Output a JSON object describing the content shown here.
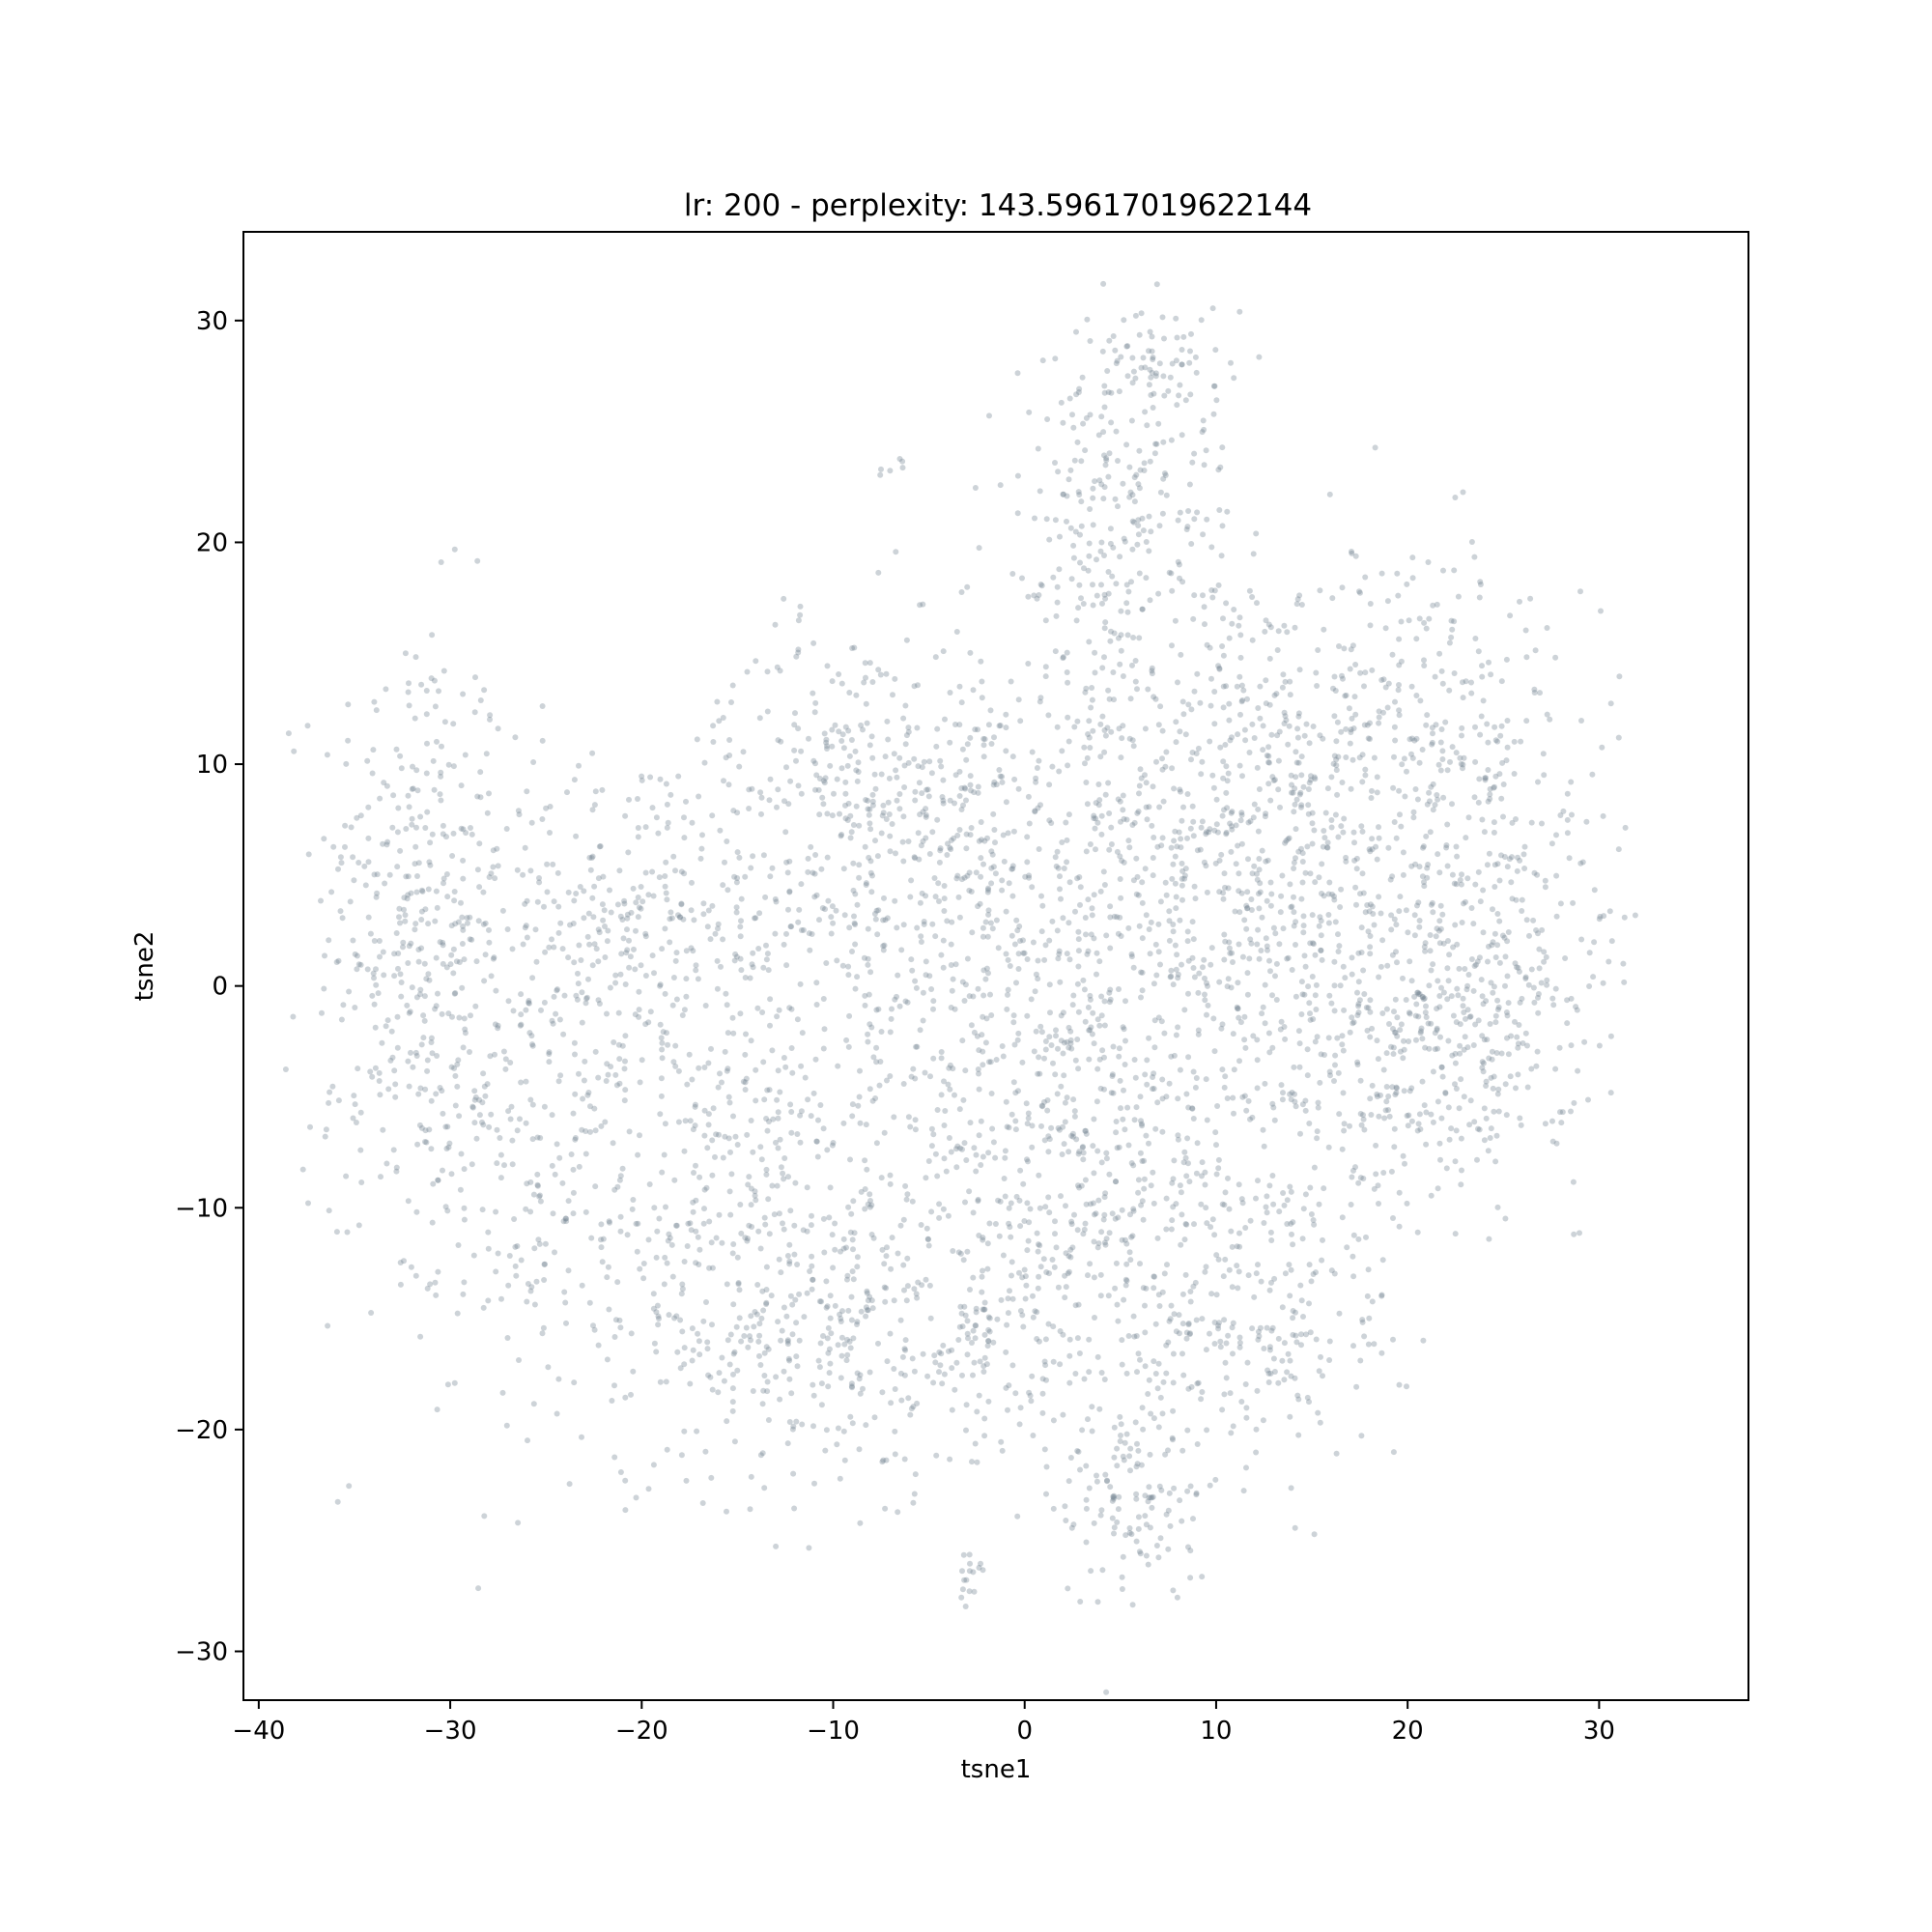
{
  "chart_data": {
    "type": "scatter",
    "title": "lr: 200 - perplexity: 143.59617019622144",
    "xlabel": "tsne1",
    "ylabel": "tsne2",
    "xlim": [
      -40.8,
      37.8
    ],
    "ylim": [
      -32.2,
      34.0
    ],
    "xticks": [
      -40,
      -30,
      -20,
      -10,
      0,
      10,
      20,
      30
    ],
    "xtick_labels": [
      "−40",
      "−30",
      "−20",
      "−10",
      "0",
      "10",
      "20",
      "30"
    ],
    "yticks": [
      -30,
      -20,
      -10,
      0,
      10,
      20,
      30
    ],
    "ytick_labels": [
      "−30",
      "−20",
      "−10",
      "0",
      "10",
      "20",
      "30"
    ],
    "marker_color": "#708090",
    "marker_alpha": 0.35,
    "grid": false,
    "legend": "none",
    "series": [
      {
        "clusters": [
          {
            "x": -32.0,
            "y": 4.0,
            "sx": 2.5,
            "sy": 6.5,
            "w": 7
          },
          {
            "x": -26.0,
            "y": -4.0,
            "sx": 5.0,
            "sy": 6.0,
            "w": 9
          },
          {
            "x": -20.0,
            "y": 3.0,
            "sx": 5.0,
            "sy": 4.0,
            "w": 7
          },
          {
            "x": -16.0,
            "y": -12.0,
            "sx": 6.0,
            "sy": 5.0,
            "w": 10
          },
          {
            "x": -6.0,
            "y": -16.0,
            "sx": 6.0,
            "sy": 3.5,
            "w": 8
          },
          {
            "x": -8.0,
            "y": 10.0,
            "sx": 4.0,
            "sy": 3.0,
            "w": 6
          },
          {
            "x": -5.0,
            "y": 0.0,
            "sx": 6.0,
            "sy": 6.0,
            "w": 12
          },
          {
            "x": 4.0,
            "y": -8.0,
            "sx": 6.0,
            "sy": 6.0,
            "w": 12
          },
          {
            "x": 5.0,
            "y": 8.0,
            "sx": 6.0,
            "sy": 5.0,
            "w": 11
          },
          {
            "x": 5.0,
            "y": 21.0,
            "sx": 3.0,
            "sy": 4.0,
            "w": 6
          },
          {
            "x": 7.0,
            "y": 28.0,
            "sx": 2.0,
            "sy": 1.5,
            "w": 2
          },
          {
            "x": 15.0,
            "y": 1.0,
            "sx": 5.0,
            "sy": 6.0,
            "w": 13
          },
          {
            "x": 19.0,
            "y": 12.0,
            "sx": 5.0,
            "sy": 4.0,
            "w": 8
          },
          {
            "x": 22.0,
            "y": -3.0,
            "sx": 3.5,
            "sy": 3.0,
            "w": 6
          },
          {
            "x": 25.0,
            "y": 4.0,
            "sx": 3.0,
            "sy": 5.0,
            "w": 5
          },
          {
            "x": 12.0,
            "y": -15.0,
            "sx": 4.0,
            "sy": 4.0,
            "w": 6
          },
          {
            "x": 5.5,
            "y": -23.0,
            "sx": 1.8,
            "sy": 2.5,
            "w": 3
          },
          {
            "x": -3.0,
            "y": -26.5,
            "sx": 0.3,
            "sy": 0.6,
            "w": 0.4
          },
          {
            "x": -7.0,
            "y": 23.4,
            "sx": 0.6,
            "sy": 0.3,
            "w": 0.15
          }
        ]
      }
    ]
  }
}
